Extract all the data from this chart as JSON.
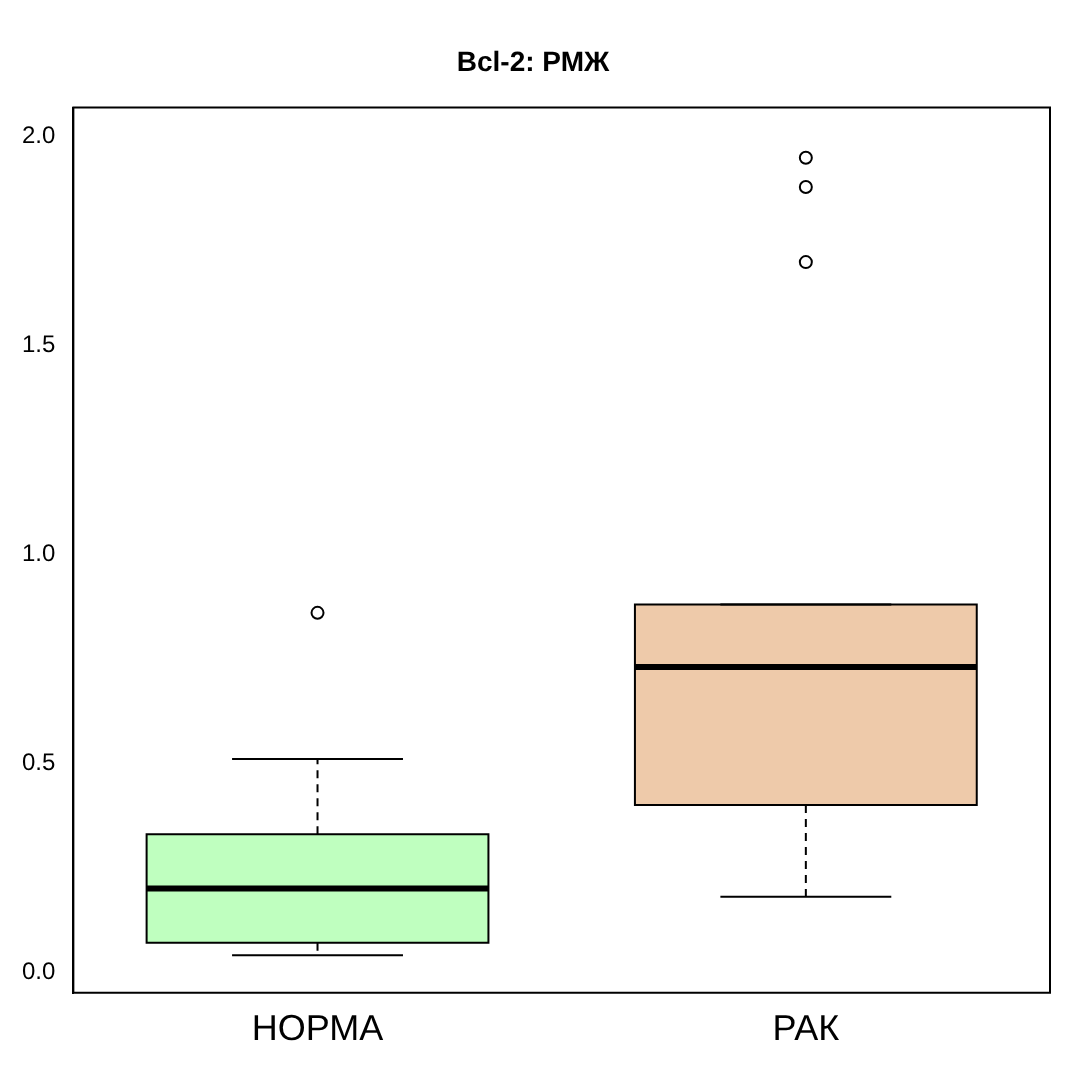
{
  "chart_data": {
    "type": "box",
    "title": "Bcl-2: РМЖ",
    "categories": [
      "НОРМА",
      "РАК"
    ],
    "colors": [
      "#bfffbf",
      "#eecaaa"
    ],
    "boxes": [
      {
        "low": 0.04,
        "q1": 0.07,
        "median": 0.2,
        "q3": 0.33,
        "high": 0.51,
        "outliers": [
          0.86
        ]
      },
      {
        "low": 0.18,
        "q1": 0.4,
        "median": 0.73,
        "q3": 0.88,
        "high": 0.88,
        "outliers": [
          1.7,
          1.88,
          1.95
        ]
      }
    ],
    "ylim": [
      -0.05,
      2.07
    ],
    "yticks": [
      {
        "value": 0,
        "label": "0.0"
      },
      {
        "value": 0.5,
        "label": "0.5"
      },
      {
        "value": 1,
        "label": "1.0"
      },
      {
        "value": 1.5,
        "label": "1.5"
      },
      {
        "value": 2,
        "label": "2.0"
      }
    ],
    "grid": false,
    "legend": false,
    "marker": "circle"
  }
}
